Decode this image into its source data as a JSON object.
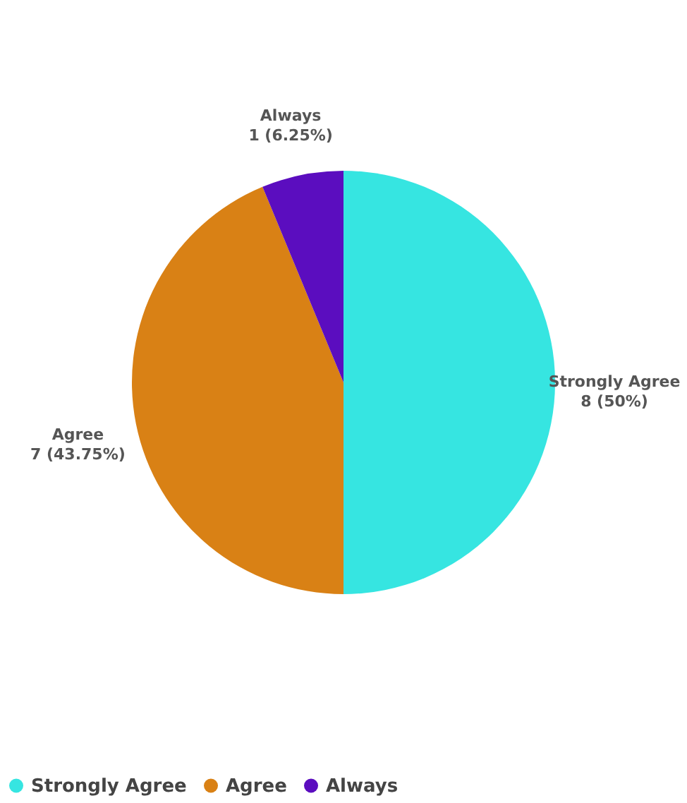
{
  "chart_data": {
    "type": "pie",
    "categories": [
      "Strongly Agree",
      "Agree",
      "Always"
    ],
    "values": [
      8,
      7,
      1
    ],
    "colors": [
      "#36e5e1",
      "#d98115",
      "#5b0dbf"
    ],
    "value_labels": [
      "8 (50%)",
      "7 (43.75%)",
      "1 (6.25%)"
    ],
    "legend": "bottom"
  }
}
